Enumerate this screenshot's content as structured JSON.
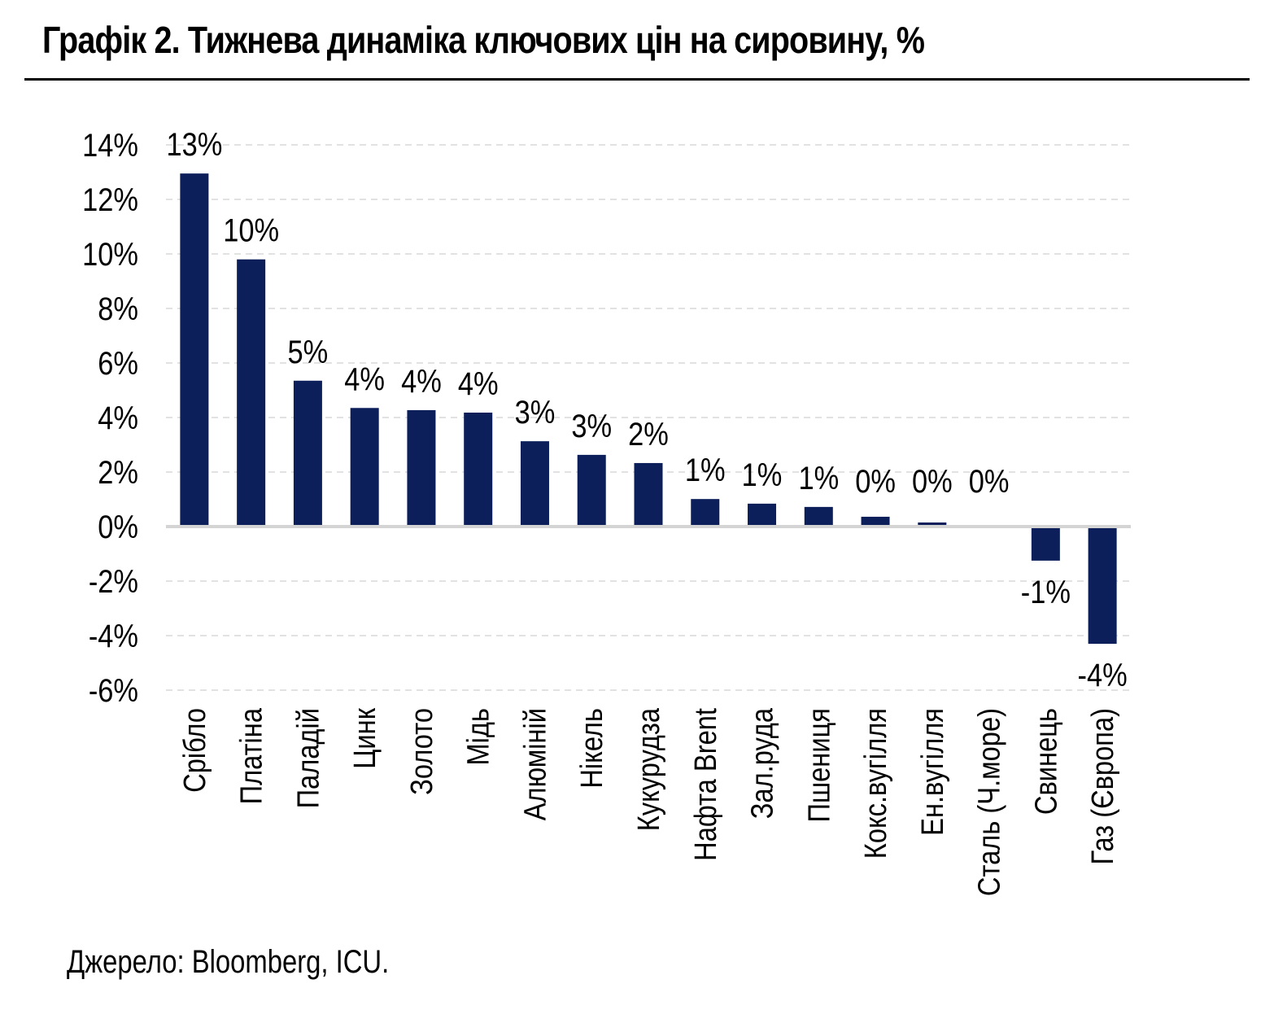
{
  "header": {
    "title": "Графік 2. Тижнева динаміка ключових цін на сировину, %"
  },
  "footer": {
    "source": "Джерело: Bloomberg, ICU."
  },
  "colors": {
    "bar": "#0c1f5b",
    "grid": "#d9d9d9",
    "zero_line": "#d4d4d4",
    "text": "#000000"
  },
  "chart_data": {
    "type": "bar",
    "title": "Графік 2. Тижнева динаміка ключових цін на сировину, %",
    "xlabel": "",
    "ylabel": "",
    "ylim": [
      -6,
      14
    ],
    "yticks": [
      14,
      12,
      10,
      8,
      6,
      4,
      2,
      0,
      -2,
      -4,
      -6
    ],
    "ytick_labels": [
      "14%",
      "12%",
      "10%",
      "8%",
      "6%",
      "4%",
      "2%",
      "0%",
      "-2%",
      "-4%",
      "-6%"
    ],
    "grid": true,
    "legend": "none",
    "categories": [
      "Срібло",
      "Платіна",
      "Паладій",
      "Цинк",
      "Золото",
      "Мідь",
      "Алюміній",
      "Нікель",
      "Кукурудза",
      "Нафта Brent",
      "Зал.руда",
      "Пшениця",
      "Кокс.вугілля",
      "Ен.вугілля",
      "Сталь (Ч.море)",
      "Свинець",
      "Газ (Європа)"
    ],
    "values": [
      12.95,
      9.8,
      5.35,
      4.35,
      4.27,
      4.18,
      3.13,
      2.63,
      2.33,
      1.01,
      0.84,
      0.72,
      0.36,
      0.15,
      0.0,
      -1.25,
      -4.3
    ],
    "data_labels": [
      "13%",
      "10%",
      "5%",
      "4%",
      "4%",
      "4%",
      "3%",
      "3%",
      "2%",
      "1%",
      "1%",
      "1%",
      "0%",
      "0%",
      "0%",
      "-1%",
      "-4%"
    ]
  }
}
